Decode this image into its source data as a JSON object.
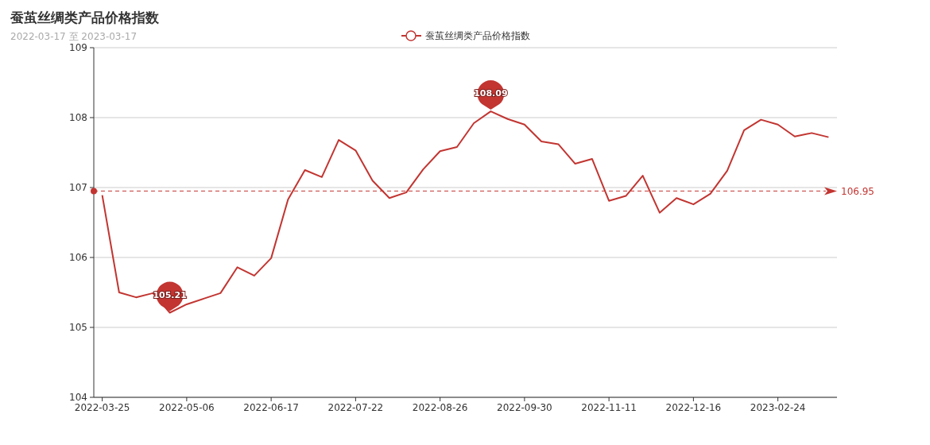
{
  "chart_data": {
    "type": "line",
    "title": "蚕茧丝绸类产品价格指数",
    "subtitle": "2022-03-17 至 2023-03-17",
    "categories": [
      "2022-03-25",
      null,
      null,
      null,
      null,
      "2022-05-06",
      null,
      null,
      null,
      null,
      "2022-06-17",
      null,
      null,
      null,
      null,
      "2022-07-22",
      null,
      null,
      null,
      null,
      "2022-08-26",
      null,
      null,
      null,
      null,
      "2022-09-30",
      null,
      null,
      null,
      null,
      "2022-11-11",
      null,
      null,
      null,
      null,
      "2022-12-16",
      null,
      null,
      null,
      null,
      "2023-02-24",
      null,
      null,
      null
    ],
    "series": [
      {
        "name": "蚕茧丝绸类产品价格指数",
        "color": "#c23531",
        "values": [
          106.89,
          105.5,
          105.43,
          105.49,
          105.21,
          105.33,
          105.41,
          105.49,
          105.86,
          105.74,
          105.99,
          106.83,
          107.25,
          107.15,
          107.68,
          107.53,
          107.1,
          106.85,
          106.93,
          107.26,
          107.52,
          107.58,
          107.92,
          108.09,
          107.98,
          107.9,
          107.66,
          107.62,
          107.34,
          107.41,
          106.81,
          106.88,
          107.17,
          106.64,
          106.85,
          106.76,
          106.91,
          107.24,
          107.82,
          107.97,
          107.9,
          107.73,
          107.78,
          107.72
        ],
        "value_labels": [
          null,
          null,
          null,
          null,
          "105.21",
          null,
          null,
          null,
          null,
          null,
          null,
          null,
          null,
          null,
          null,
          null,
          null,
          null,
          null,
          null,
          null,
          null,
          null,
          "108.09",
          null,
          null,
          null,
          null,
          null,
          null,
          null,
          null,
          null,
          null,
          null,
          null,
          null,
          null,
          null,
          null,
          null,
          null,
          null,
          null
        ]
      }
    ],
    "ylim": [
      104,
      109
    ],
    "yticks": [
      104,
      105,
      106,
      107,
      108,
      109
    ],
    "grid": "y",
    "legend": "top",
    "marker": "none",
    "line_style": "solid",
    "ref_lines": [
      {
        "axis": "y",
        "value": 106.95,
        "label": "106.95",
        "color": "#c23531",
        "line_style": "dashed"
      }
    ]
  }
}
